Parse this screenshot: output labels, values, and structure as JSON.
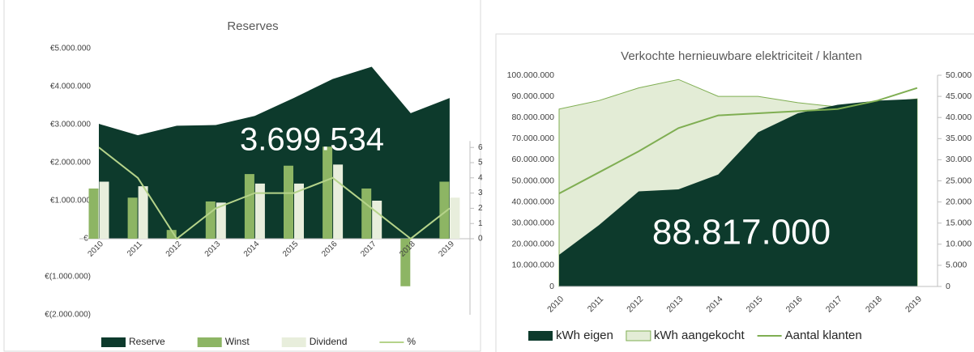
{
  "chart_data": [
    {
      "type": "combo",
      "title": "Reserves",
      "annotation": "3.699.534",
      "categories": [
        "2010",
        "2011",
        "2012",
        "2013",
        "2014",
        "2015",
        "2016",
        "2017",
        "2018",
        "2019"
      ],
      "series": [
        {
          "name": "Reserve",
          "type": "area",
          "color": "#0d3a2c",
          "values": [
            3020000,
            2720000,
            2970000,
            2990000,
            3230000,
            3700000,
            4200000,
            4520000,
            3300000,
            3699534
          ]
        },
        {
          "name": "Winst",
          "type": "bar",
          "color": "#8db564",
          "values": [
            1320000,
            1080000,
            230000,
            980000,
            1700000,
            1920000,
            2420000,
            1320000,
            -1250000,
            1500000
          ]
        },
        {
          "name": "Dividend",
          "type": "bar",
          "color": "#e8eedc",
          "values": [
            1500000,
            1380000,
            null,
            950000,
            1450000,
            1450000,
            1950000,
            1000000,
            null,
            1080000
          ]
        },
        {
          "name": "%",
          "type": "line",
          "axis": "y2",
          "color": "#b5d38a",
          "values": [
            6,
            4,
            0,
            2,
            3,
            3,
            4,
            2,
            0,
            2
          ]
        }
      ],
      "ylim": [
        -2000000,
        5000000
      ],
      "yticks": [
        {
          "value": 5000000,
          "label": "€5.000.000"
        },
        {
          "value": 4000000,
          "label": "€4.000.000"
        },
        {
          "value": 3000000,
          "label": "€3.000.000"
        },
        {
          "value": 2000000,
          "label": "€2.000.000"
        },
        {
          "value": 1000000,
          "label": "€1.000.000"
        },
        {
          "value": 0,
          "label": "€-"
        },
        {
          "value": -1000000,
          "label": "€(1.000.000)"
        },
        {
          "value": -2000000,
          "label": "€(2.000.000)"
        }
      ],
      "y2lim": [
        -5,
        12.5
      ],
      "y2ticks": [
        0,
        1,
        2,
        3,
        4,
        5,
        6
      ],
      "legend": "bottom"
    },
    {
      "type": "combo",
      "title": "Verkochte hernieuwbare elektriciteit / klanten",
      "annotation": "88.817.000",
      "categories": [
        "2010",
        "2011",
        "2012",
        "2013",
        "2014",
        "2015",
        "2016",
        "2017",
        "2018",
        "2019"
      ],
      "series": [
        {
          "name": "kWh eigen",
          "type": "area",
          "color": "#0d3a2c",
          "values": [
            15000000,
            29000000,
            45000000,
            46000000,
            53000000,
            73000000,
            82000000,
            86000000,
            88000000,
            88817000
          ]
        },
        {
          "name": "kWh aangekocht",
          "type": "area",
          "color": "#e3ecd6",
          "values": [
            84000000,
            88000000,
            94000000,
            98000000,
            90000000,
            90000000,
            87000000,
            85000000,
            87000000,
            88817000
          ]
        },
        {
          "name": "Aantal klanten",
          "type": "line",
          "axis": "y2",
          "color": "#7fae52",
          "values": [
            22000,
            27000,
            32000,
            37500,
            40500,
            41000,
            41500,
            42000,
            44000,
            47000
          ]
        }
      ],
      "ylim": [
        0,
        100000000
      ],
      "yticks": [
        {
          "value": 100000000,
          "label": "100.000.000"
        },
        {
          "value": 90000000,
          "label": "90.000.000"
        },
        {
          "value": 80000000,
          "label": "80.000.000"
        },
        {
          "value": 70000000,
          "label": "70.000.000"
        },
        {
          "value": 60000000,
          "label": "60.000.000"
        },
        {
          "value": 50000000,
          "label": "50.000.000"
        },
        {
          "value": 40000000,
          "label": "40.000.000"
        },
        {
          "value": 30000000,
          "label": "30.000.000"
        },
        {
          "value": 20000000,
          "label": "20.000.000"
        },
        {
          "value": 10000000,
          "label": "10.000.000"
        },
        0
      ],
      "y2lim": [
        0,
        50000
      ],
      "y2ticks": [
        {
          "value": 50000,
          "label": "50.000"
        },
        {
          "value": 45000,
          "label": "45.000"
        },
        {
          "value": 40000,
          "label": "40.000"
        },
        {
          "value": 35000,
          "label": "35.000"
        },
        {
          "value": 30000,
          "label": "30.000"
        },
        {
          "value": 25000,
          "label": "25.000"
        },
        {
          "value": 20000,
          "label": "20.000"
        },
        {
          "value": 15000,
          "label": "15.000"
        },
        {
          "value": 10000,
          "label": "10.000"
        },
        {
          "value": 5000,
          "label": "5.000"
        },
        0
      ],
      "legend": "bottom"
    }
  ]
}
